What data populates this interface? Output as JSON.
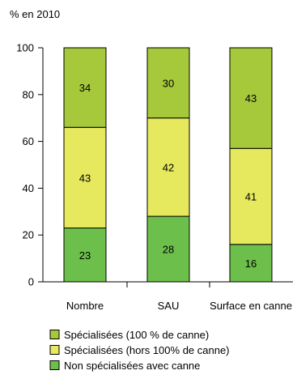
{
  "chart_data": {
    "type": "bar",
    "stacked": true,
    "unit_label": "% en 2010",
    "categories": [
      "Nombre",
      "SAU",
      "Surface en canne"
    ],
    "ylim": [
      0,
      100
    ],
    "yticks": [
      0,
      20,
      40,
      60,
      80,
      100
    ],
    "grid": false,
    "legend_position": "bottom-left",
    "series": [
      {
        "name": "Non spécialisées avec canne",
        "color": "#6cbf4a",
        "values": [
          23,
          28,
          16
        ]
      },
      {
        "name": "Spécialisées  (hors 100% de canne)",
        "color": "#e6e85e",
        "values": [
          43,
          42,
          41
        ]
      },
      {
        "name": "Spécialisées (100 % de canne)",
        "color": "#a6c93c",
        "values": [
          34,
          30,
          43
        ]
      }
    ],
    "legend_order": [
      2,
      1,
      0
    ]
  }
}
